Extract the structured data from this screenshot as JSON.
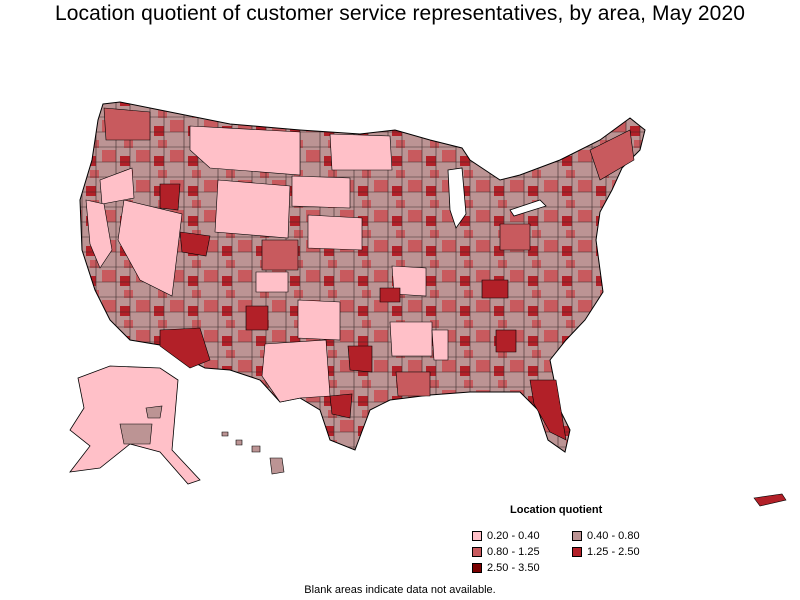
{
  "title": "Location quotient of customer service representatives, by area, May 2020",
  "legend": {
    "title": "Location quotient",
    "items": [
      {
        "label": "0.20 - 0.40",
        "color": "#ffc0c8"
      },
      {
        "label": "0.40 - 0.80",
        "color": "#bc9494"
      },
      {
        "label": "0.80 - 1.25",
        "color": "#c85a5e"
      },
      {
        "label": "1.25 - 2.50",
        "color": "#b22028"
      },
      {
        "label": "2.50 - 3.50",
        "color": "#7a0000"
      }
    ]
  },
  "note": "Blank areas indicate data not available.",
  "colors": {
    "border": "#000000",
    "blank": "#ffffff"
  }
}
